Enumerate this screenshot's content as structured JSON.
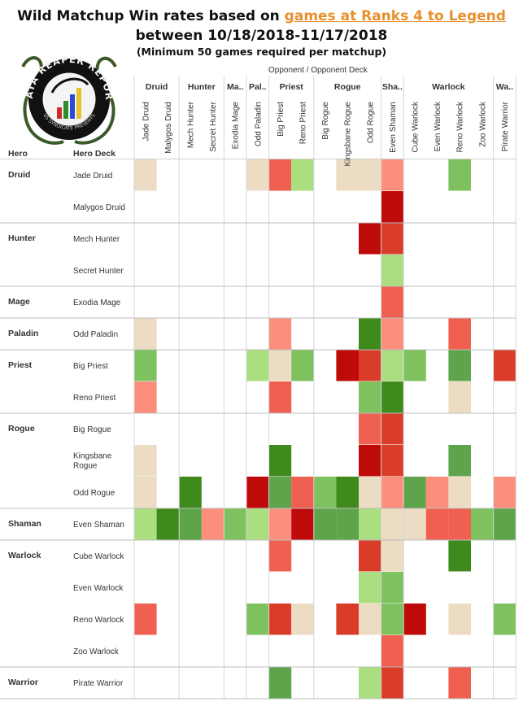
{
  "title": {
    "prefix": "Wild Matchup Win rates based on ",
    "highlight": "games at Ranks 4 to Legend",
    "line2": "between 10/18/2018-11/17/2018",
    "line3": "(Minimum 50 games required per matchup)"
  },
  "logo": {
    "text_top": "DATA REAPER REPORT",
    "text_bottom": "VS SYNDICATE PRESENTS"
  },
  "axis": {
    "opponent": "Opponent  /  Opponent Deck",
    "hero": "Hero",
    "hero_deck": "Hero Deck"
  },
  "chart_data": {
    "type": "heatmap",
    "opponent_classes": [
      {
        "name": "Druid",
        "span": 2
      },
      {
        "name": "Hunter",
        "span": 2
      },
      {
        "name": "Ma..",
        "span": 1
      },
      {
        "name": "Pal..",
        "span": 1
      },
      {
        "name": "Priest",
        "span": 2
      },
      {
        "name": "Rogue",
        "span": 3
      },
      {
        "name": "Sha..",
        "span": 1
      },
      {
        "name": "Warlock",
        "span": 4
      },
      {
        "name": "Wa..",
        "span": 1
      }
    ],
    "opponent_decks": [
      "Jade Druid",
      "Malygos Druid",
      "Mech Hunter",
      "Secret Hunter",
      "Exodia Mage",
      "Odd Paladin",
      "Big Priest",
      "Reno Priest",
      "Big Rogue",
      "Kingsbane Rogue",
      "Odd Rogue",
      "Even Shaman",
      "Cube Warlock",
      "Even Warlock",
      "Reno Warlock",
      "Zoo Warlock",
      "Pirate Warrior"
    ],
    "hero_groups": [
      {
        "name": "Druid",
        "rows": 2
      },
      {
        "name": "Hunter",
        "rows": 2
      },
      {
        "name": "Mage",
        "rows": 1
      },
      {
        "name": "Paladin",
        "rows": 1
      },
      {
        "name": "Priest",
        "rows": 2
      },
      {
        "name": "Rogue",
        "rows": 3
      },
      {
        "name": "Shaman",
        "rows": 1
      },
      {
        "name": "Warlock",
        "rows": 4
      },
      {
        "name": "Warrior",
        "rows": 1
      }
    ],
    "hero_decks": [
      "Jade Druid",
      "Malygos Druid",
      "Mech Hunter",
      "Secret Hunter",
      "Exodia Mage",
      "Odd Paladin",
      "Big Priest",
      "Reno Priest",
      "Big Rogue",
      "Kingsbane\nRogue",
      "Odd Rogue",
      "Even Shaman",
      "Cube Warlock",
      "Even Warlock",
      "Reno Warlock",
      "Zoo Warlock",
      "Pirate Warrior"
    ],
    "legend": {
      "colors": {
        "-3": "#bf0a0a",
        "-2": "#d93d29",
        "-1": "#ef6050",
        "0": "#fb8e7d",
        "1": "#ecdcc3",
        "2": "#abde7f",
        "3": "#7fc15f",
        "4": "#5da44b",
        "5": "#3f8a1c"
      }
    },
    "cells": [
      [
        1,
        null,
        null,
        null,
        null,
        1,
        -1,
        2,
        null,
        1,
        1,
        0,
        null,
        null,
        3,
        null,
        null
      ],
      [
        null,
        null,
        null,
        null,
        null,
        null,
        null,
        null,
        null,
        null,
        null,
        -3,
        null,
        null,
        null,
        null,
        null
      ],
      [
        null,
        null,
        null,
        null,
        null,
        null,
        null,
        null,
        null,
        null,
        -3,
        -2,
        null,
        null,
        null,
        null,
        null
      ],
      [
        null,
        null,
        null,
        null,
        null,
        null,
        null,
        null,
        null,
        null,
        null,
        2,
        null,
        null,
        null,
        null,
        null
      ],
      [
        null,
        null,
        null,
        null,
        null,
        null,
        null,
        null,
        null,
        null,
        null,
        -1,
        null,
        null,
        null,
        null,
        null
      ],
      [
        1,
        null,
        null,
        null,
        null,
        null,
        0,
        null,
        null,
        null,
        5,
        0,
        null,
        null,
        -1,
        null,
        null
      ],
      [
        3,
        null,
        null,
        null,
        null,
        2,
        1,
        3,
        null,
        -3,
        -2,
        2,
        3,
        null,
        4,
        null,
        -2
      ],
      [
        0,
        null,
        null,
        null,
        null,
        null,
        -1,
        null,
        null,
        null,
        3,
        5,
        null,
        null,
        1,
        null,
        null
      ],
      [
        null,
        null,
        null,
        null,
        null,
        null,
        null,
        null,
        null,
        null,
        -1,
        -2,
        null,
        null,
        null,
        null,
        null
      ],
      [
        1,
        null,
        null,
        null,
        null,
        null,
        5,
        null,
        null,
        null,
        -3,
        -2,
        null,
        null,
        4,
        null,
        null
      ],
      [
        1,
        null,
        5,
        null,
        null,
        -3,
        4,
        -1,
        3,
        5,
        1,
        0,
        4,
        0,
        1,
        null,
        0
      ],
      [
        2,
        5,
        4,
        0,
        3,
        2,
        0,
        -3,
        4,
        4,
        2,
        1,
        1,
        -1,
        -1,
        3,
        4
      ],
      [
        null,
        null,
        null,
        null,
        null,
        null,
        -1,
        null,
        null,
        null,
        -2,
        1,
        null,
        null,
        5,
        null,
        null
      ],
      [
        null,
        null,
        null,
        null,
        null,
        null,
        null,
        null,
        null,
        null,
        2,
        3,
        null,
        null,
        null,
        null,
        null
      ],
      [
        -1,
        null,
        null,
        null,
        null,
        3,
        -2,
        1,
        null,
        -2,
        1,
        3,
        -3,
        null,
        1,
        null,
        3
      ],
      [
        null,
        null,
        null,
        null,
        null,
        null,
        null,
        null,
        null,
        null,
        null,
        -1,
        null,
        null,
        null,
        null,
        null
      ],
      [
        null,
        null,
        null,
        null,
        null,
        null,
        4,
        null,
        null,
        null,
        2,
        -2,
        null,
        null,
        -1,
        null,
        null
      ]
    ]
  }
}
